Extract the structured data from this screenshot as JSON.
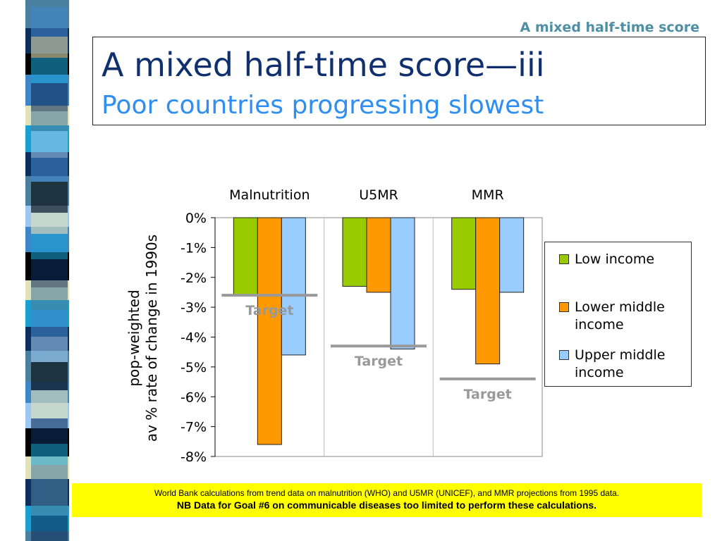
{
  "header_label": "A mixed half-time score",
  "title": "A mixed half-time score—iii",
  "subtitle": "Poor countries progressing slowest",
  "chart_data": {
    "type": "bar",
    "categories": [
      "Malnutrition",
      "U5MR",
      "MMR"
    ],
    "series": [
      {
        "name": "Low income",
        "values": [
          -2.6,
          -2.3,
          -2.4
        ],
        "color": "#99cc00"
      },
      {
        "name": "Lower middle income",
        "values": [
          -7.6,
          -2.5,
          -4.9
        ],
        "color": "#ff9900"
      },
      {
        "name": "Upper middle income",
        "values": [
          -4.6,
          -4.4,
          -2.5
        ],
        "color": "#99ccff"
      }
    ],
    "targets": [
      {
        "category": "Malnutrition",
        "value": -2.6,
        "label": "Target"
      },
      {
        "category": "U5MR",
        "value": -4.3,
        "label": "Target"
      },
      {
        "category": "MMR",
        "value": -5.4,
        "label": "Target"
      }
    ],
    "ylabel_line1": "pop-weighted",
    "ylabel_line2": "av % rate of change in 1990s",
    "ylim": [
      -8,
      0
    ],
    "yticks": [
      "0%",
      "-1%",
      "-2%",
      "-3%",
      "-4%",
      "-5%",
      "-6%",
      "-7%",
      "-8%"
    ],
    "legend_position": "right",
    "target_color": "#999999",
    "grid": "vertical category separators"
  },
  "footnote": {
    "line1": "World Bank calculations from trend data on malnutrition (WHO) and U5MR (UNICEF), and MMR projections from 1995 data.",
    "line2": "NB Data for Goal #6 on communicable diseases too limited to perform these calculations."
  },
  "colors": {
    "title": "#0f2f6e",
    "subtitle": "#2f8ef2",
    "header": "#4e8fa6",
    "footnote_bg": "#ffff00",
    "strip_palette": [
      "#4a7fa0",
      "#0e2f5c",
      "#e2e2b8",
      "#3f86c6",
      "#000000",
      "#1aa0d0",
      "#9cc7f0"
    ]
  }
}
